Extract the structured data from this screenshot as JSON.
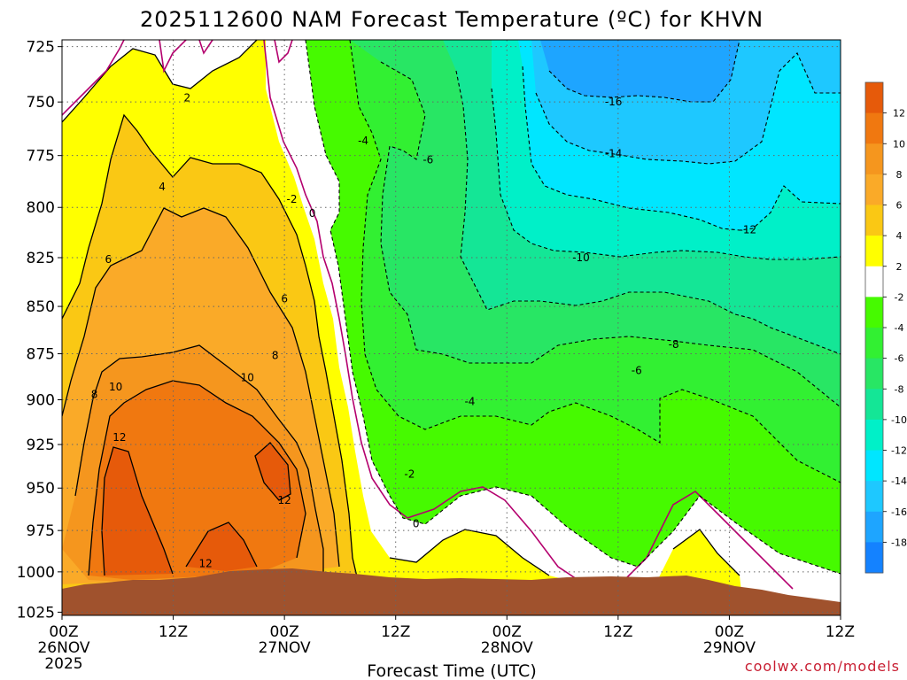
{
  "chart_data": {
    "type": "filled-contour",
    "title": "2025112600 NAM Forecast Temperature (ºC) for KHVN",
    "xlabel": "Forecast Time (UTC)",
    "ylabel": "",
    "credit": "coolwx.com/models",
    "x_ticks": [
      {
        "hour": 0,
        "label": "00Z",
        "date": "26NOV",
        "year": "2025"
      },
      {
        "hour": 12,
        "label": "12Z",
        "date": "",
        "year": ""
      },
      {
        "hour": 24,
        "label": "00Z",
        "date": "27NOV",
        "year": ""
      },
      {
        "hour": 36,
        "label": "12Z",
        "date": "",
        "year": ""
      },
      {
        "hour": 48,
        "label": "00Z",
        "date": "28NOV",
        "year": ""
      },
      {
        "hour": 60,
        "label": "12Z",
        "date": "",
        "year": ""
      },
      {
        "hour": 72,
        "label": "00Z",
        "date": "29NOV",
        "year": ""
      },
      {
        "hour": 84,
        "label": "12Z",
        "date": "",
        "year": ""
      }
    ],
    "x_range_hours": [
      0,
      84
    ],
    "y_ticks": [
      "725",
      "750",
      "775",
      "800",
      "825",
      "850",
      "875",
      "900",
      "925",
      "950",
      "975",
      "1000",
      "1025"
    ],
    "y_range_hPa": [
      722,
      1027
    ],
    "y_scale": "log",
    "grid": true,
    "colorbar": {
      "labels": [
        "12",
        "10",
        "8",
        "6",
        "4",
        "2",
        "-2",
        "-4",
        "-6",
        "-8",
        "-10",
        "-12",
        "-14",
        "-16",
        "-18"
      ],
      "colors": [
        "#e65a0a",
        "#f07810",
        "#f5961e",
        "#faaa28",
        "#fac814",
        "#ffff00",
        "#ffffff",
        "#46fa00",
        "#32f032",
        "#28e664",
        "#14e696",
        "#00f0c8",
        "#00e6ff",
        "#1ec8ff",
        "#1ea5ff",
        "#1482ff"
      ]
    },
    "contour_labels": [
      {
        "t": 13.5,
        "p": 748,
        "text": "2"
      },
      {
        "t": 10.8,
        "p": 790,
        "text": "4"
      },
      {
        "t": 5.0,
        "p": 826,
        "text": "6"
      },
      {
        "t": 3.5,
        "p": 897,
        "text": "8"
      },
      {
        "t": 5.8,
        "p": 893,
        "text": "10"
      },
      {
        "t": 6.2,
        "p": 921,
        "text": "12"
      },
      {
        "t": 24.0,
        "p": 846,
        "text": "6"
      },
      {
        "t": 20.0,
        "p": 888,
        "text": "10"
      },
      {
        "t": 23.0,
        "p": 876,
        "text": "8"
      },
      {
        "t": 24.0,
        "p": 957,
        "text": "12"
      },
      {
        "t": 15.5,
        "p": 995,
        "text": "12"
      },
      {
        "t": 24.8,
        "p": 796,
        "text": "-2"
      },
      {
        "t": 27.0,
        "p": 803,
        "text": "0"
      },
      {
        "t": 32.5,
        "p": 768,
        "text": "-4"
      },
      {
        "t": 39.5,
        "p": 777,
        "text": "-6"
      },
      {
        "t": 44.0,
        "p": 901,
        "text": "-4"
      },
      {
        "t": 37.5,
        "p": 942,
        "text": "-2"
      },
      {
        "t": 38.2,
        "p": 971,
        "text": "0"
      },
      {
        "t": 56.0,
        "p": 825,
        "text": "-10"
      },
      {
        "t": 59.5,
        "p": 774,
        "text": "-14"
      },
      {
        "t": 59.5,
        "p": 750,
        "text": "-16"
      },
      {
        "t": 74.0,
        "p": 811,
        "text": "-12"
      },
      {
        "t": 66.0,
        "p": 870,
        "text": "-8"
      },
      {
        "t": 62.0,
        "p": 884,
        "text": "-6"
      }
    ]
  }
}
